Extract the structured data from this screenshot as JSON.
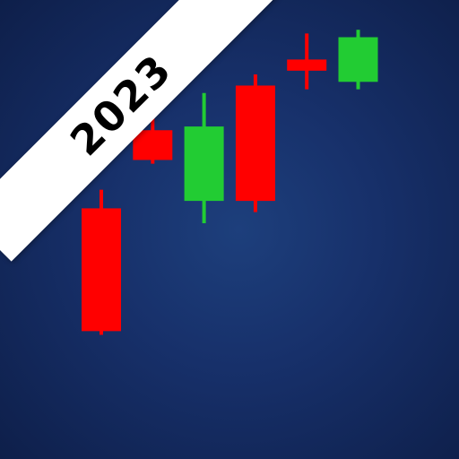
{
  "badge": {
    "year": "2023"
  },
  "colors": {
    "up": "#22cc33",
    "down": "#ff0000"
  },
  "chart_data": {
    "type": "candlestick",
    "candles": [
      {
        "open": 64,
        "close": 31,
        "high": 69,
        "low": 30,
        "direction": "down"
      },
      {
        "open": 85,
        "close": 77,
        "high": 91,
        "low": 76,
        "direction": "down"
      },
      {
        "open": 66,
        "close": 86,
        "high": 95,
        "low": 60,
        "direction": "up"
      },
      {
        "open": 97,
        "close": 66,
        "high": 100,
        "low": 63,
        "direction": "down"
      },
      {
        "open": 104,
        "close": 101,
        "high": 111,
        "low": 96,
        "direction": "down"
      },
      {
        "open": 98,
        "close": 110,
        "high": 112,
        "low": 96,
        "direction": "up"
      }
    ],
    "ylim": [
      0,
      120
    ]
  }
}
